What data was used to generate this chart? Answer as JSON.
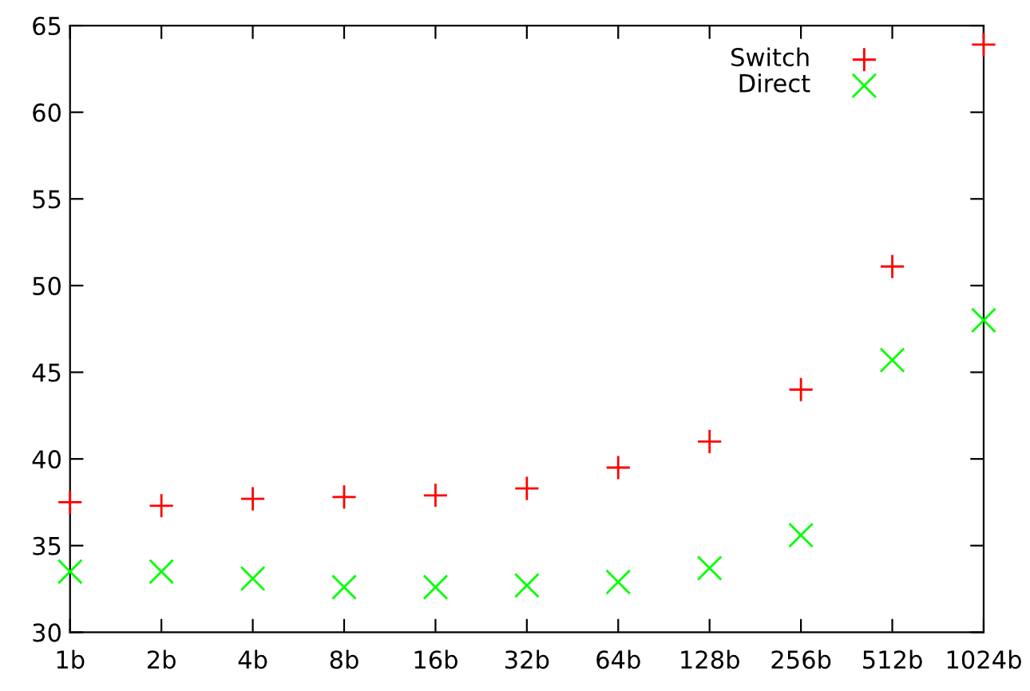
{
  "chart_data": {
    "type": "scatter",
    "categories": [
      "1b",
      "2b",
      "4b",
      "8b",
      "16b",
      "32b",
      "64b",
      "128b",
      "256b",
      "512b",
      "1024b"
    ],
    "series": [
      {
        "name": "Switch",
        "color": "#ff0000",
        "marker": "plus",
        "values": [
          37.5,
          37.3,
          37.7,
          37.8,
          37.9,
          38.3,
          39.5,
          41.0,
          44.0,
          51.1,
          63.9
        ]
      },
      {
        "name": "Direct",
        "color": "#00ff00",
        "marker": "cross",
        "values": [
          33.5,
          33.5,
          33.1,
          32.6,
          32.6,
          32.7,
          32.9,
          33.7,
          35.6,
          45.7,
          48.0
        ]
      }
    ],
    "ylim": [
      30,
      65
    ],
    "yticks": [
      30,
      35,
      40,
      45,
      50,
      55,
      60,
      65
    ],
    "grid": false,
    "legend": "top right"
  }
}
